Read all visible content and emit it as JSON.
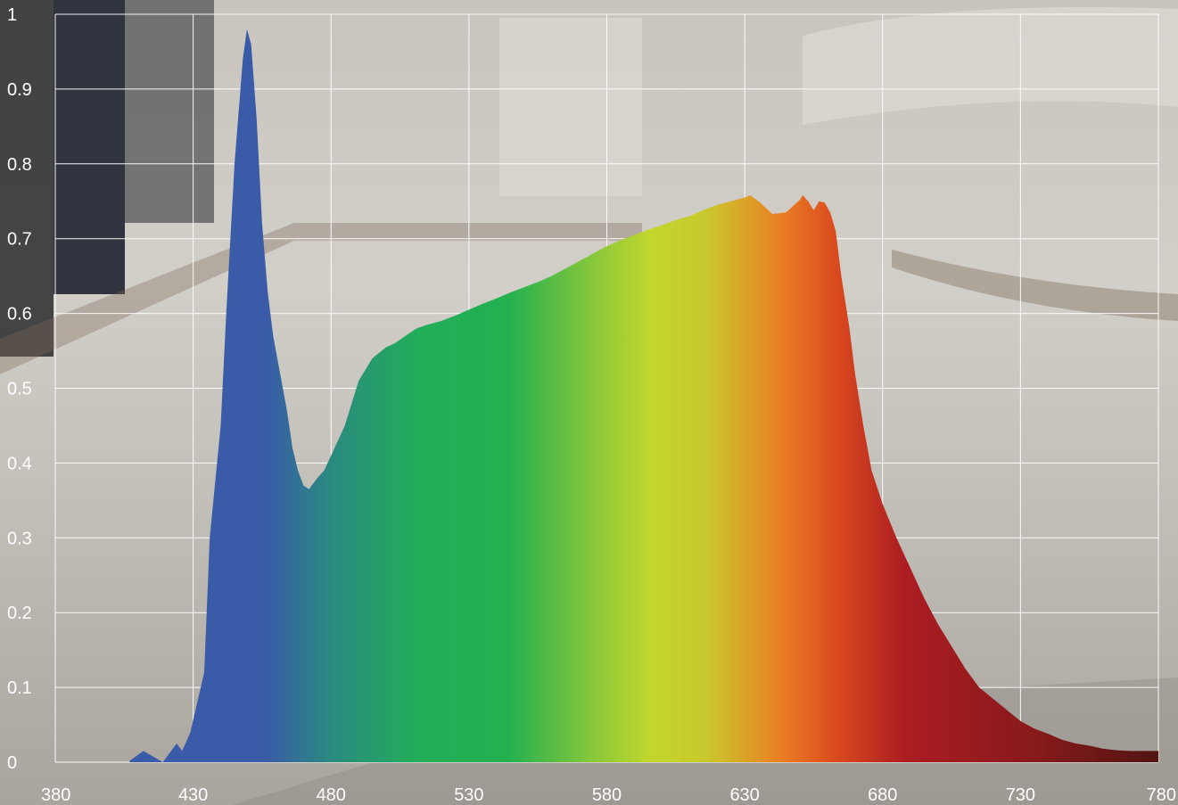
{
  "chart_data": {
    "type": "area",
    "title": "",
    "xlabel": "",
    "ylabel": "",
    "xlim": [
      380,
      780
    ],
    "ylim": [
      0,
      1
    ],
    "grid": true,
    "legend": "none",
    "x_ticks": [
      380,
      430,
      480,
      530,
      580,
      630,
      680,
      730,
      780
    ],
    "y_ticks": [
      0,
      0.1,
      0.2,
      0.3,
      0.4,
      0.5,
      0.6,
      0.7,
      0.8,
      0.9,
      1
    ],
    "x_tick_labels": [
      "380",
      "430",
      "480",
      "530",
      "580",
      "630",
      "680",
      "730",
      "780"
    ],
    "y_tick_labels": [
      "0",
      "0.1",
      "0.2",
      "0.3",
      "0.4",
      "0.5",
      "0.6",
      "0.7",
      "0.8",
      "0.9",
      "1"
    ],
    "series": [
      {
        "x": [
          407,
          412,
          419,
          421,
          424,
          426,
          429,
          434,
          436,
          440,
          442,
          445,
          448,
          449.5,
          451,
          453,
          455,
          457,
          459,
          461,
          464,
          466,
          468,
          470,
          472,
          475,
          477.5,
          480,
          485,
          490,
          495,
          500,
          503,
          507,
          511,
          515,
          520,
          525,
          530,
          535,
          540,
          545,
          550,
          555,
          560,
          565,
          570,
          575,
          580,
          585,
          590,
          595,
          600,
          605,
          610,
          615,
          620,
          625,
          630,
          632,
          635,
          640,
          645,
          650,
          651,
          653,
          655,
          657,
          659,
          661,
          663,
          665,
          668,
          670,
          673,
          676,
          680,
          685,
          690,
          695,
          700,
          705,
          710,
          715,
          720,
          725,
          730,
          735,
          740,
          745,
          750,
          755,
          760,
          765,
          770,
          775,
          780
        ],
        "y": [
          0.002,
          0.015,
          0.0,
          0.01,
          0.025,
          0.015,
          0.04,
          0.12,
          0.3,
          0.45,
          0.6,
          0.8,
          0.94,
          0.98,
          0.96,
          0.86,
          0.72,
          0.63,
          0.57,
          0.53,
          0.47,
          0.42,
          0.39,
          0.37,
          0.365,
          0.38,
          0.39,
          0.41,
          0.45,
          0.51,
          0.54,
          0.555,
          0.56,
          0.57,
          0.58,
          0.585,
          0.59,
          0.597,
          0.605,
          0.613,
          0.62,
          0.628,
          0.635,
          0.642,
          0.65,
          0.66,
          0.67,
          0.68,
          0.69,
          0.698,
          0.705,
          0.712,
          0.718,
          0.725,
          0.73,
          0.738,
          0.745,
          0.75,
          0.755,
          0.758,
          0.75,
          0.733,
          0.735,
          0.752,
          0.758,
          0.75,
          0.738,
          0.75,
          0.748,
          0.735,
          0.71,
          0.65,
          0.58,
          0.52,
          0.45,
          0.39,
          0.345,
          0.3,
          0.26,
          0.22,
          0.185,
          0.155,
          0.125,
          0.1,
          0.085,
          0.07,
          0.055,
          0.045,
          0.038,
          0.03,
          0.025,
          0.022,
          0.018,
          0.016,
          0.015,
          0.015,
          0.015
        ]
      }
    ]
  }
}
